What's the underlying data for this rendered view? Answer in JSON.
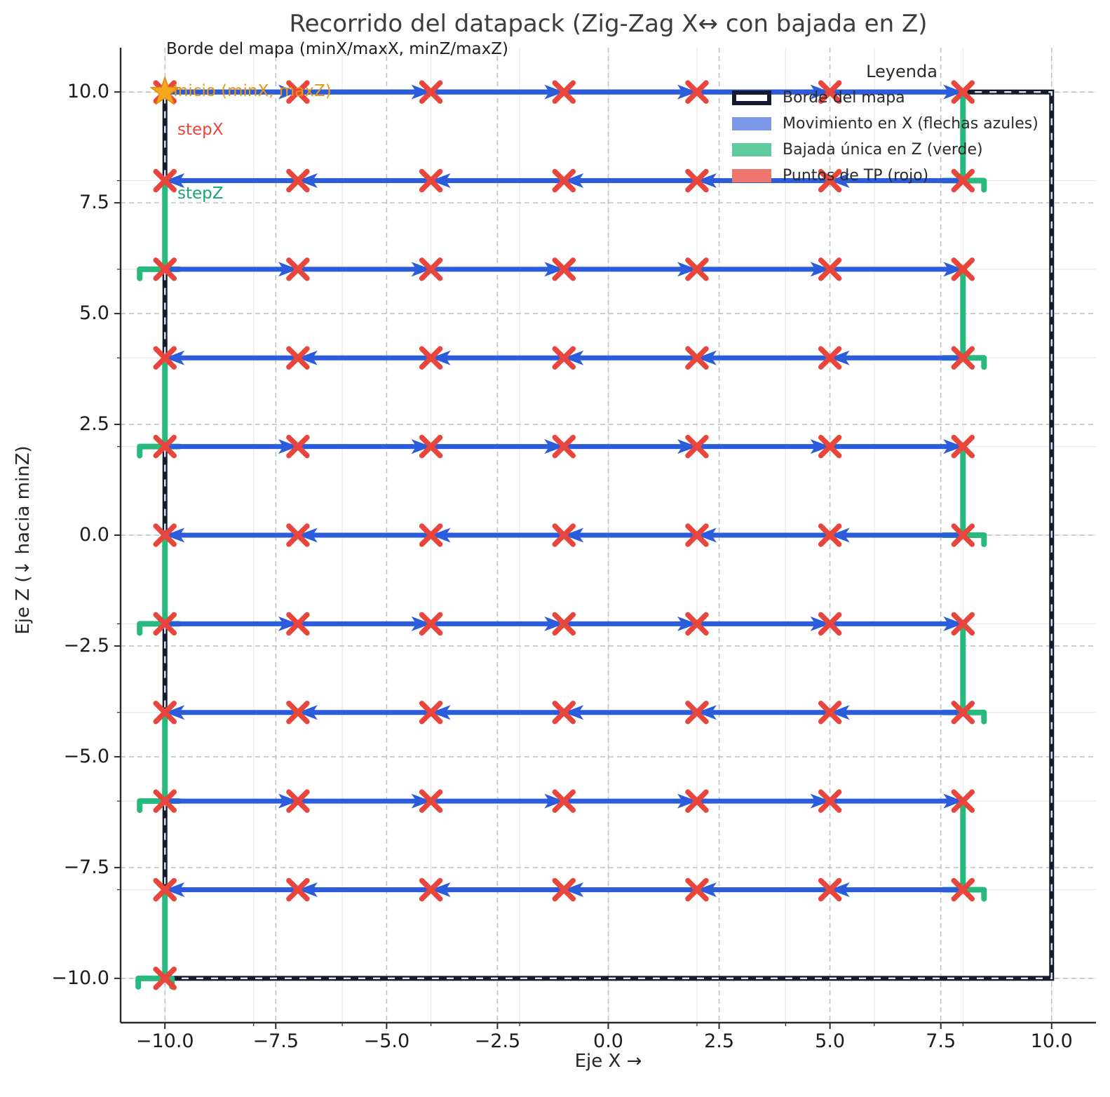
{
  "title": "Recorrido del datapack (Zig-Zag X↔ con bajada en Z)",
  "annotations": {
    "border_note": "Borde del mapa (minX/maxX, minZ/maxZ)",
    "inicio": "Inicio (minX, maxZ)",
    "stepX": "stepX",
    "stepZ": "stepZ"
  },
  "axes": {
    "xlabel": "Eje X →",
    "ylabel": "Eje Z (↓ hacia minZ)",
    "xtick_values": [
      -10,
      -7.5,
      -5,
      -2.5,
      0,
      2.5,
      5,
      7.5,
      10
    ],
    "xtick_labels": [
      "−10.0",
      "−7.5",
      "−5.0",
      "−2.5",
      "0.0",
      "2.5",
      "5.0",
      "7.5",
      "10.0"
    ],
    "ytick_values": [
      10,
      7.5,
      5,
      2.5,
      0,
      -2.5,
      -5,
      -7.5,
      -10
    ],
    "ytick_labels": [
      "10.0",
      "7.5",
      "5.0",
      "2.5",
      "0.0",
      "−2.5",
      "−5.0",
      "−7.5",
      "−10.0"
    ]
  },
  "legend": {
    "title": "Leyenda",
    "items": [
      {
        "label": "Borde del mapa",
        "swatch": "border",
        "color": "#141b2e"
      },
      {
        "label": "Movimiento en X (flechas azules)",
        "swatch": "fill",
        "color": "#7b97e8"
      },
      {
        "label": "Bajada única en Z (verde)",
        "swatch": "fill",
        "color": "#60cb9e"
      },
      {
        "label": "Puntos de TP (rojo)",
        "swatch": "fill",
        "color": "#ee746e"
      }
    ]
  },
  "colors": {
    "blue": "#2a5cdb",
    "green": "#28b97d",
    "red": "#e8463c",
    "navy": "#141b2e",
    "border_dash": "#dfe3ea",
    "star_fill": "#f5a623",
    "star_edge": "#dd8e05",
    "grid_major": "#c2c2c2",
    "grid_minor": "#e8e8e8",
    "spine": "#2b2b2b"
  },
  "chart_data": {
    "type": "line",
    "title": "Recorrido del datapack (Zig-Zag X↔ con bajada en Z)",
    "xlabel": "Eje X →",
    "ylabel": "Eje Z (↓ hacia minZ)",
    "xlim": [
      -11,
      11
    ],
    "ylim": [
      -11,
      11
    ],
    "grid": {
      "major_every": 2.5,
      "major_style": "dashed",
      "minor_every": 2,
      "minor_style": "solid"
    },
    "map_bounds": {
      "minX": -10,
      "maxX": 10,
      "minZ": -10,
      "maxZ": 10
    },
    "stepX": 3,
    "stepZ": 2,
    "start": {
      "x": -10,
      "z": 10
    },
    "end": {
      "x": -10,
      "z": -10
    },
    "rows": [
      {
        "z": 10,
        "direction": "right",
        "tp_points": [
          -10,
          -7,
          -4,
          -1,
          2,
          5,
          8
        ]
      },
      {
        "z": 8,
        "direction": "left",
        "tp_points": [
          8,
          5,
          2,
          -1,
          -4,
          -7,
          -10
        ]
      },
      {
        "z": 6,
        "direction": "right",
        "tp_points": [
          -10,
          -7,
          -4,
          -1,
          2,
          5,
          8
        ]
      },
      {
        "z": 4,
        "direction": "left",
        "tp_points": [
          8,
          5,
          2,
          -1,
          -4,
          -7,
          -10
        ]
      },
      {
        "z": 2,
        "direction": "right",
        "tp_points": [
          -10,
          -7,
          -4,
          -1,
          2,
          5,
          8
        ]
      },
      {
        "z": 0,
        "direction": "left",
        "tp_points": [
          8,
          5,
          2,
          -1,
          -4,
          -7,
          -10
        ]
      },
      {
        "z": -2,
        "direction": "right",
        "tp_points": [
          -10,
          -7,
          -4,
          -1,
          2,
          5,
          8
        ]
      },
      {
        "z": -4,
        "direction": "left",
        "tp_points": [
          8,
          5,
          2,
          -1,
          -4,
          -7,
          -10
        ]
      },
      {
        "z": -6,
        "direction": "right",
        "tp_points": [
          -10,
          -7,
          -4,
          -1,
          2,
          5,
          8
        ]
      },
      {
        "z": -8,
        "direction": "left",
        "tp_points": [
          8,
          5,
          2,
          -1,
          -4,
          -7,
          -10
        ]
      }
    ],
    "descents": [
      {
        "x": 8,
        "zfrom": 10,
        "zto": 8,
        "hook": "right"
      },
      {
        "x": -10,
        "zfrom": 8,
        "zto": 6,
        "hook": "left"
      },
      {
        "x": 8,
        "zfrom": 6,
        "zto": 4,
        "hook": "right"
      },
      {
        "x": -10,
        "zfrom": 4,
        "zto": 2,
        "hook": "left"
      },
      {
        "x": 8,
        "zfrom": 2,
        "zto": 0,
        "hook": "right"
      },
      {
        "x": -10,
        "zfrom": 0,
        "zto": -2,
        "hook": "left"
      },
      {
        "x": 8,
        "zfrom": -2,
        "zto": -4,
        "hook": "right"
      },
      {
        "x": -10,
        "zfrom": -4,
        "zto": -6,
        "hook": "left"
      },
      {
        "x": 8,
        "zfrom": -6,
        "zto": -8,
        "hook": "right"
      },
      {
        "x": -10,
        "zfrom": -8,
        "zto": -10,
        "hook": "both"
      }
    ]
  }
}
